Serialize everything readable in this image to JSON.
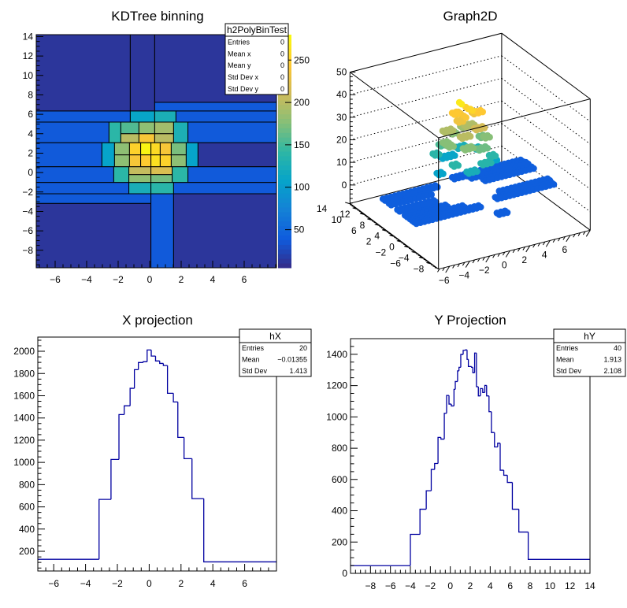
{
  "palette": [
    "#352a87",
    "#0f5cdd",
    "#1481d6",
    "#06a4ca",
    "#2eb7a4",
    "#87bf77",
    "#d1bb59",
    "#fec832",
    "#f9fb0e"
  ],
  "hist_color": "#0000a0",
  "chart_data": [
    {
      "type": "heatmap",
      "title": "KDTree binning",
      "xlim": [
        -7.2,
        8.05
      ],
      "ylim": [
        -9.8,
        14.2
      ],
      "zlim": [
        5,
        280
      ],
      "xticks": [
        -6,
        -4,
        -2,
        0,
        2,
        4,
        6
      ],
      "xticklabels": [
        "−6",
        "−4",
        "−2",
        "0",
        "2",
        "4",
        "6"
      ],
      "yticks": [
        -8,
        -6,
        -4,
        -2,
        0,
        2,
        4,
        6,
        8,
        10,
        12,
        14
      ],
      "yticklabels": [
        "−8",
        "−6",
        "−4",
        "−2",
        "0",
        "2",
        "4",
        "6",
        "8",
        "10",
        "12",
        "14"
      ],
      "zticks": [
        50,
        100,
        150,
        200,
        250
      ],
      "zticklabels": [
        "50",
        "100",
        "150",
        "200",
        "250"
      ],
      "bins": [
        [
          -7.2,
          -1.23,
          6.34,
          14.2,
          13
        ],
        [
          -1.23,
          0.32,
          6.34,
          14.2,
          13
        ],
        [
          0.32,
          8.05,
          7.23,
          14.2,
          13
        ],
        [
          0.32,
          8.05,
          6.34,
          7.23,
          38
        ],
        [
          -7.2,
          -1.23,
          5.2,
          6.34,
          38
        ],
        [
          -1.23,
          0.32,
          5.2,
          6.34,
          110
        ],
        [
          0.32,
          1.67,
          5.2,
          6.34,
          126
        ],
        [
          1.67,
          8.05,
          5.2,
          6.34,
          38
        ],
        [
          -7.2,
          -2.58,
          3.07,
          5.2,
          38
        ],
        [
          -2.58,
          -1.83,
          3.07,
          5.2,
          140
        ],
        [
          -1.83,
          -0.68,
          4.0,
          5.2,
          156
        ],
        [
          -0.68,
          0.32,
          4.0,
          5.2,
          180
        ],
        [
          0.32,
          1.52,
          4.0,
          5.2,
          190
        ],
        [
          -1.83,
          -0.68,
          3.07,
          4.0,
          200
        ],
        [
          -0.68,
          0.32,
          3.07,
          4.0,
          240
        ],
        [
          0.32,
          1.52,
          3.07,
          4.0,
          200
        ],
        [
          1.52,
          2.43,
          3.07,
          5.2,
          128
        ],
        [
          2.43,
          8.05,
          3.07,
          5.2,
          38
        ],
        [
          -7.2,
          -3.03,
          0.6,
          3.07,
          38
        ],
        [
          -3.03,
          -2.23,
          0.6,
          3.07,
          108
        ],
        [
          -2.23,
          -1.28,
          1.82,
          3.07,
          180
        ],
        [
          -2.23,
          -1.28,
          0.6,
          1.82,
          180
        ],
        [
          -1.28,
          -0.57,
          1.82,
          3.07,
          252
        ],
        [
          -0.57,
          0.08,
          1.82,
          3.07,
          275
        ],
        [
          0.08,
          0.67,
          1.82,
          3.07,
          258
        ],
        [
          0.67,
          1.37,
          1.82,
          3.07,
          240
        ],
        [
          -1.28,
          -0.57,
          0.6,
          1.82,
          240
        ],
        [
          -0.57,
          0.08,
          0.6,
          1.82,
          248
        ],
        [
          0.08,
          0.67,
          0.6,
          1.82,
          262
        ],
        [
          0.67,
          1.37,
          0.6,
          1.82,
          252
        ],
        [
          1.37,
          2.32,
          1.82,
          3.07,
          172
        ],
        [
          1.37,
          2.32,
          0.6,
          1.82,
          180
        ],
        [
          2.32,
          3.07,
          0.6,
          3.07,
          108
        ],
        [
          3.07,
          8.05,
          0.6,
          3.07,
          13
        ],
        [
          -7.2,
          -2.28,
          -1.02,
          0.6,
          38
        ],
        [
          -2.28,
          -1.32,
          -1.02,
          0.6,
          140
        ],
        [
          -1.32,
          0.08,
          -0.21,
          0.6,
          205
        ],
        [
          0.08,
          1.43,
          -0.21,
          0.6,
          218
        ],
        [
          -1.32,
          0.08,
          -1.02,
          -0.21,
          180
        ],
        [
          0.08,
          1.43,
          -1.02,
          -0.21,
          170
        ],
        [
          1.43,
          2.43,
          -1.02,
          0.6,
          140
        ],
        [
          2.43,
          8.05,
          -1.02,
          0.6,
          38
        ],
        [
          -7.2,
          -1.32,
          -2.18,
          -1.02,
          38
        ],
        [
          -1.32,
          0.08,
          -2.18,
          -1.02,
          125
        ],
        [
          0.08,
          1.52,
          -2.18,
          -1.02,
          138
        ],
        [
          1.52,
          8.05,
          -2.18,
          -1.02,
          38
        ],
        [
          -7.2,
          0.08,
          -3.18,
          -2.18,
          38
        ],
        [
          -7.2,
          0.08,
          -9.8,
          -3.18,
          13
        ],
        [
          0.08,
          1.52,
          -9.8,
          -2.18,
          38
        ],
        [
          1.52,
          8.05,
          -9.8,
          -2.18,
          13
        ]
      ],
      "stats": {
        "name": "h2PolyBinTest",
        "rows": [
          {
            "label": "Entries",
            "value": "0"
          },
          {
            "label": "Mean x",
            "value": "0"
          },
          {
            "label": "Mean y",
            "value": "0"
          },
          {
            "label": "Std Dev x",
            "value": "0"
          },
          {
            "label": "Std Dev y",
            "value": "0"
          }
        ]
      }
    },
    {
      "type": "scatter",
      "title": "Graph2D",
      "xlim": [
        -7.1,
        8
      ],
      "ylim": [
        -9.8,
        14.2
      ],
      "zlim": [
        -8.2,
        50
      ],
      "xticks": [
        -6,
        -4,
        -2,
        0,
        2,
        4,
        6
      ],
      "xticklabels": [
        "−6",
        "−4",
        "−2",
        "0",
        "2",
        "4",
        "6"
      ],
      "yticks": [
        -8,
        -6,
        -4,
        -2,
        0,
        2,
        4,
        6,
        8,
        10,
        12,
        14
      ],
      "yticklabels": [
        "−8",
        "−6",
        "−4",
        "−2",
        "0",
        "2",
        "4",
        "6",
        "8",
        "10",
        "12",
        "14"
      ],
      "zticks": [
        0,
        10,
        20,
        30,
        40,
        50
      ],
      "zticklabels": [
        "0",
        "10",
        "20",
        "30",
        "40",
        "50"
      ],
      "points_from": "KDTree binning bins (z = content/6 − 3)"
    },
    {
      "type": "bar",
      "title": "X projection",
      "xlim": [
        -7,
        8
      ],
      "ylim": [
        23,
        2128
      ],
      "xticks": [
        -6,
        -4,
        -2,
        0,
        2,
        4,
        6
      ],
      "xticklabels": [
        "−6",
        "−4",
        "−2",
        "0",
        "2",
        "4",
        "6"
      ],
      "yticks": [
        200,
        400,
        600,
        800,
        1000,
        1200,
        1400,
        1600,
        1800,
        2000
      ],
      "yticklabels": [
        "200",
        "400",
        "600",
        "800",
        "1000",
        "1200",
        "1400",
        "1600",
        "1800",
        "2000"
      ],
      "edges": [
        -7,
        -3.15,
        -2.4,
        -1.9,
        -1.57,
        -1.2,
        -0.93,
        -0.68,
        -0.38,
        -0.13,
        0.13,
        0.4,
        0.66,
        0.89,
        1.15,
        1.52,
        1.8,
        2.19,
        2.69,
        3.43,
        8
      ],
      "values": [
        128,
        667,
        1027,
        1431,
        1509,
        1667,
        1835,
        1899,
        1906,
        2012,
        1957,
        1913,
        1891,
        1872,
        1622,
        1544,
        1225,
        1034,
        674,
        105
      ],
      "stats": {
        "name": "hX",
        "rows": [
          {
            "label": "Entries",
            "value": "20"
          },
          {
            "label": "Mean",
            "value": "−0.01355"
          },
          {
            "label": "Std Dev",
            "value": "1.413"
          }
        ]
      }
    },
    {
      "type": "bar",
      "title": "Y Projection",
      "xlim": [
        -10,
        14
      ],
      "ylim": [
        0,
        1500
      ],
      "xticks": [
        -8,
        -6,
        -4,
        -2,
        0,
        2,
        4,
        6,
        8,
        10,
        12,
        14
      ],
      "xticklabels": [
        "−8",
        "−6",
        "−4",
        "−2",
        "0",
        "2",
        "4",
        "6",
        "8",
        "10",
        "12",
        "14"
      ],
      "yticks": [
        0,
        200,
        400,
        600,
        800,
        1000,
        1200,
        1400
      ],
      "yticklabels": [
        "0",
        "200",
        "400",
        "600",
        "800",
        "1000",
        "1200",
        "1400"
      ],
      "edges": [
        -10,
        -4,
        -3.04,
        -2.41,
        -1.91,
        -1.57,
        -1.23,
        -0.94,
        -0.6,
        -0.37,
        -0.13,
        0.1,
        0.37,
        0.5,
        0.73,
        0.87,
        1.05,
        1.29,
        1.52,
        1.68,
        1.81,
        2.13,
        2.26,
        2.44,
        2.62,
        2.81,
        3.02,
        3.25,
        3.46,
        3.64,
        3.88,
        4.12,
        4.43,
        4.75,
        5.0,
        5.36,
        5.72,
        6.22,
        6.87,
        7.81,
        14
      ],
      "values": [
        49,
        249,
        410,
        528,
        664,
        702,
        869,
        858,
        1023,
        1137,
        1082,
        1070,
        1176,
        1226,
        1294,
        1317,
        1399,
        1425,
        1428,
        1368,
        1322,
        1317,
        1282,
        1408,
        1193,
        1134,
        1181,
        1156,
        1201,
        1134,
        1033,
        900,
        808,
        832,
        659,
        627,
        581,
        410,
        264,
        89
      ],
      "stats": {
        "name": "hY",
        "rows": [
          {
            "label": "Entries",
            "value": "40"
          },
          {
            "label": "Mean",
            "value": "1.913"
          },
          {
            "label": "Std Dev",
            "value": "2.108"
          }
        ]
      }
    }
  ]
}
